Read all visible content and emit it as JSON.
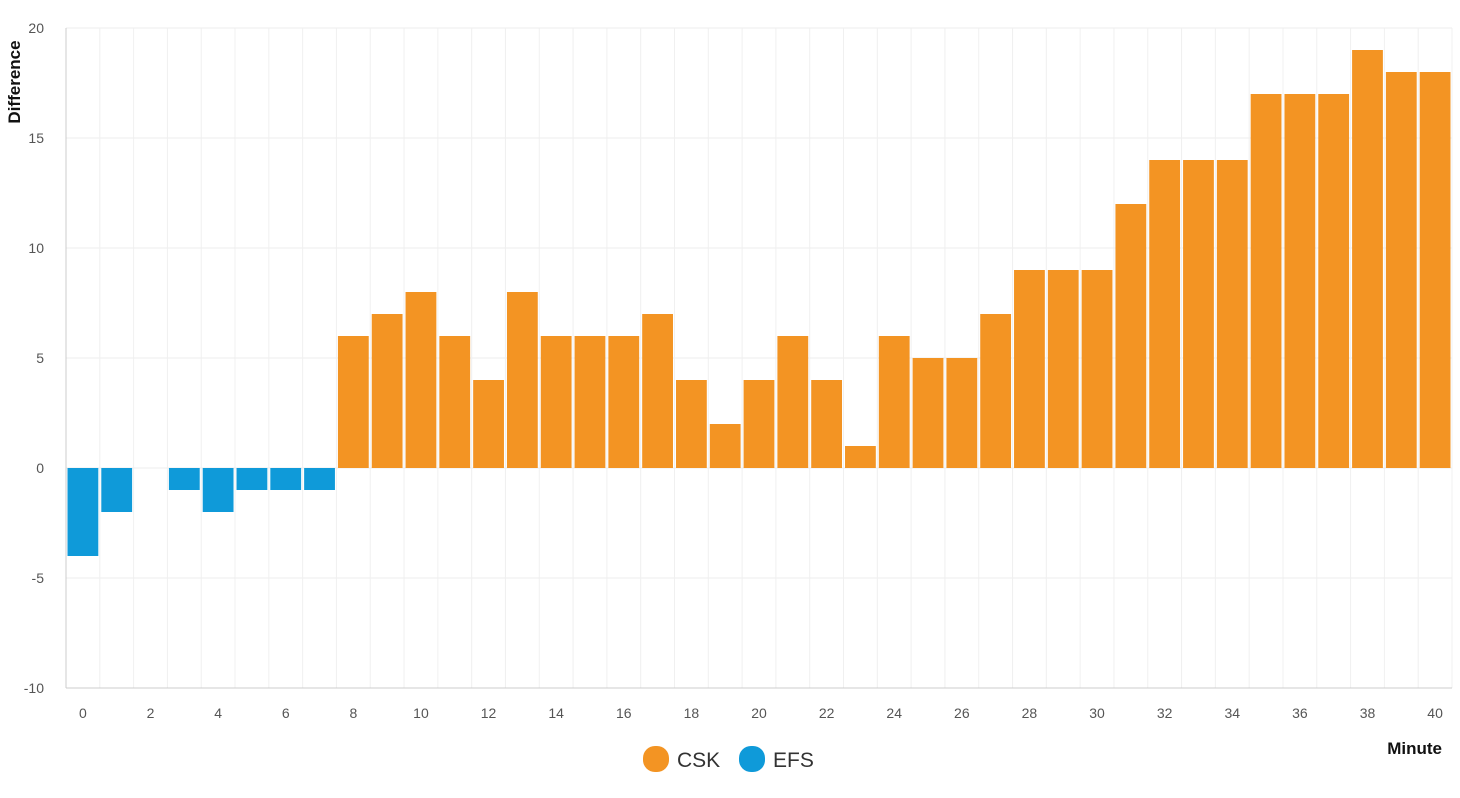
{
  "chart_data": {
    "type": "bar",
    "title": "",
    "xlabel": "Minute",
    "ylabel": "Difference",
    "x": [
      0,
      1,
      2,
      3,
      4,
      5,
      6,
      7,
      8,
      9,
      10,
      11,
      12,
      13,
      14,
      15,
      16,
      17,
      18,
      19,
      20,
      21,
      22,
      23,
      24,
      25,
      26,
      27,
      28,
      29,
      30,
      31,
      32,
      33,
      34,
      35,
      36,
      37,
      38,
      39,
      40
    ],
    "values": [
      -4,
      -2,
      0,
      -1,
      -2,
      -1,
      -1,
      -1,
      6,
      7,
      8,
      6,
      4,
      8,
      6,
      6,
      6,
      7,
      4,
      2,
      4,
      6,
      4,
      1,
      6,
      5,
      5,
      7,
      9,
      9,
      9,
      12,
      14,
      14,
      14,
      17,
      17,
      17,
      19,
      18,
      18
    ],
    "ylim": [
      -10,
      20
    ],
    "xlim": [
      -0.5,
      40.5
    ],
    "yticks": [
      -10,
      -5,
      0,
      5,
      10,
      15,
      20
    ],
    "xticks": [
      0,
      2,
      4,
      6,
      8,
      10,
      12,
      14,
      16,
      18,
      20,
      22,
      24,
      26,
      28,
      30,
      32,
      34,
      36,
      38,
      40
    ],
    "grid": true,
    "legend_position": "bottom-center",
    "series": [
      {
        "name": "CSK",
        "color": "#f39423",
        "sign": "positive"
      },
      {
        "name": "EFS",
        "color": "#0f9ad9",
        "sign": "negative"
      }
    ]
  }
}
